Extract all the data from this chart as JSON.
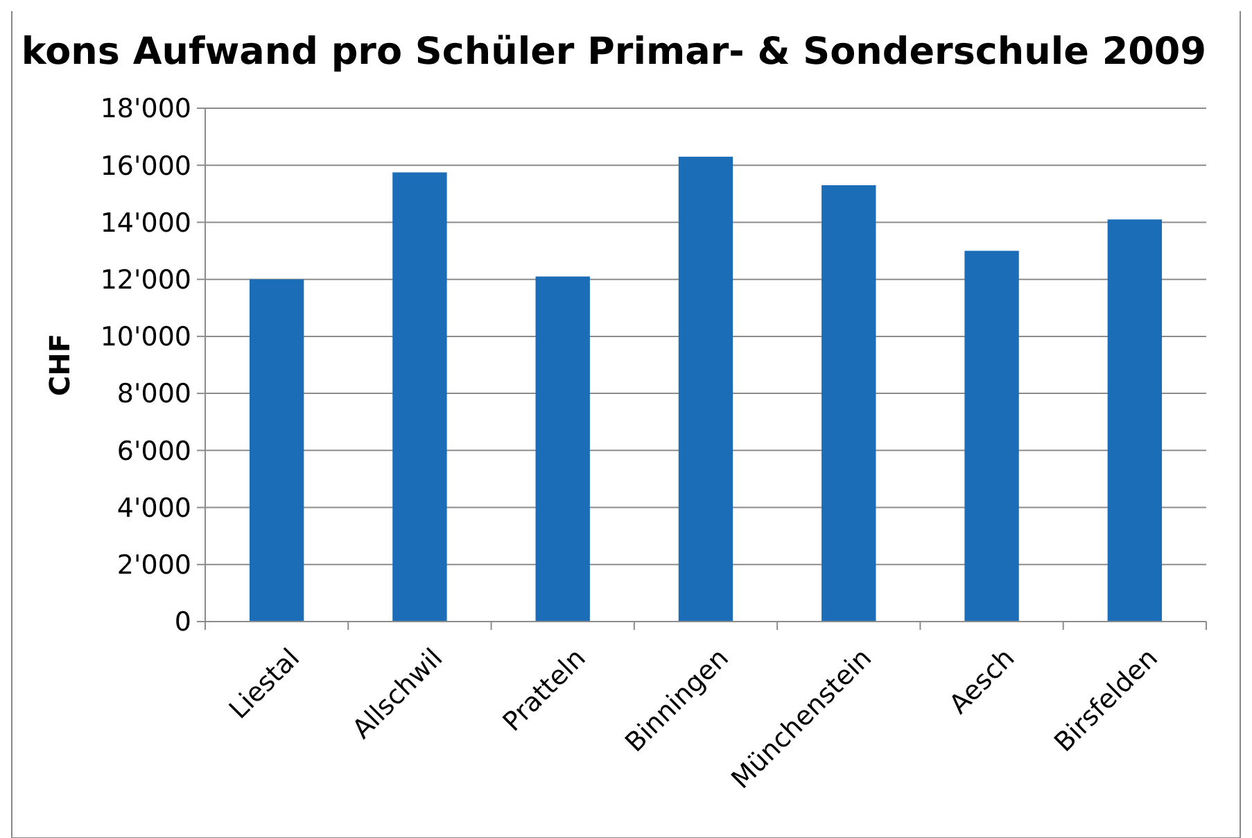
{
  "chart_data": {
    "type": "bar",
    "title": "kons Aufwand pro Schüler Primar- & Sonderschule 2009",
    "ylabel": "CHF",
    "categories": [
      "Liestal",
      "Allschwil",
      "Pratteln",
      "Binningen",
      "Münchenstein",
      "Aesch",
      "Birsfelden"
    ],
    "values": [
      12000,
      15750,
      12100,
      16300,
      15300,
      13000,
      14100
    ],
    "color": "#1c6db8",
    "ylim": [
      0,
      18000
    ],
    "yticks": [
      {
        "value": 0,
        "label": "0"
      },
      {
        "value": 2000,
        "label": "2'000"
      },
      {
        "value": 4000,
        "label": "4'000"
      },
      {
        "value": 6000,
        "label": "6'000"
      },
      {
        "value": 8000,
        "label": "8'000"
      },
      {
        "value": 10000,
        "label": "10'000"
      },
      {
        "value": 12000,
        "label": "12'000"
      },
      {
        "value": 14000,
        "label": "14'000"
      },
      {
        "value": 16000,
        "label": "16'000"
      },
      {
        "value": 18000,
        "label": "18'000"
      }
    ],
    "grid": "y"
  }
}
